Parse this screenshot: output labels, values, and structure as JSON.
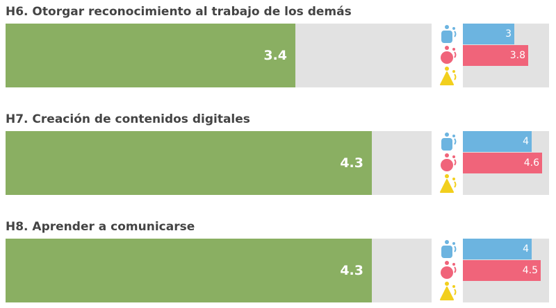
{
  "colors": {
    "main": "#8aaf62",
    "series_blue": "#6cb4e0",
    "series_red": "#f0647a",
    "series_yellow": "#f2cf1d",
    "track": "#e2e2e2"
  },
  "icons": [
    "blue-person-icon",
    "red-person-icon",
    "yellow-person-icon"
  ],
  "chart_data": [
    {
      "type": "bar",
      "title": "H6. Otorgar reconocimiento al trabajo de los demás",
      "main": {
        "value": 3.4,
        "label": "3.4",
        "max": 5
      },
      "series": [
        {
          "color": "#6cb4e0",
          "value": 3.0,
          "label": "3"
        },
        {
          "color": "#f0647a",
          "value": 3.8,
          "label": "3.8"
        },
        {
          "color": "#f2cf1d",
          "value": null,
          "label": ""
        }
      ]
    },
    {
      "type": "bar",
      "title": "H7. Creación de contenidos digitales",
      "main": {
        "value": 4.3,
        "label": "4.3",
        "max": 5
      },
      "series": [
        {
          "color": "#6cb4e0",
          "value": 4.0,
          "label": "4"
        },
        {
          "color": "#f0647a",
          "value": 4.6,
          "label": "4.6"
        },
        {
          "color": "#f2cf1d",
          "value": null,
          "label": ""
        }
      ]
    },
    {
      "type": "bar",
      "title": "H8. Aprender a comunicarse",
      "main": {
        "value": 4.3,
        "label": "4.3",
        "max": 5
      },
      "series": [
        {
          "color": "#6cb4e0",
          "value": 4.0,
          "label": "4"
        },
        {
          "color": "#f0647a",
          "value": 4.5,
          "label": "4.5"
        },
        {
          "color": "#f2cf1d",
          "value": null,
          "label": ""
        }
      ]
    }
  ]
}
